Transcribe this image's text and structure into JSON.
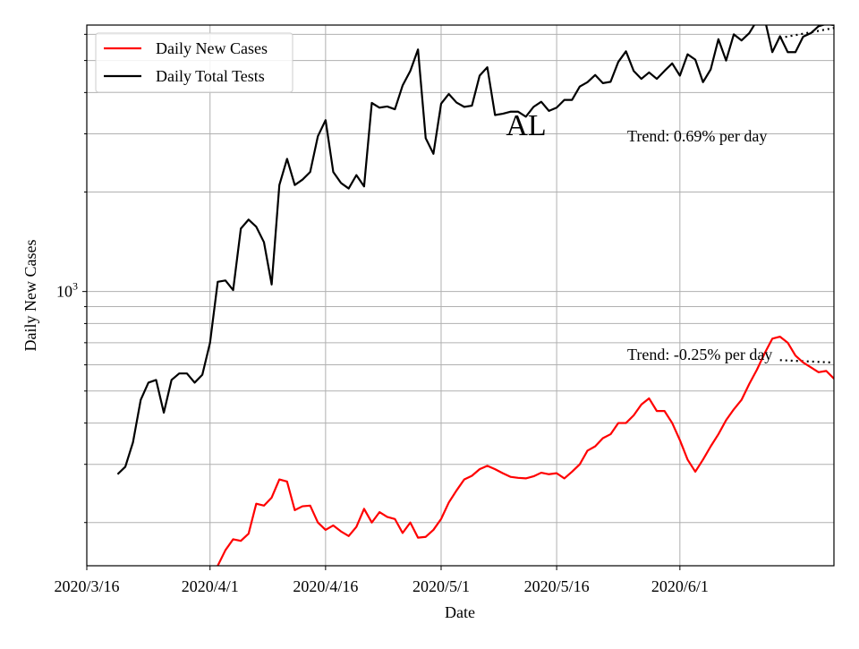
{
  "chart_data": {
    "type": "line",
    "title": "AL",
    "xlabel": "Date",
    "ylabel": "Daily New Cases",
    "yscale": "log",
    "ylim": [
      148,
      6400
    ],
    "xlim": [
      "2020-03-16",
      "2020-06-21"
    ],
    "grid": true,
    "legend_position": "top-left",
    "x_ticks": [
      {
        "date": "2020-03-16",
        "label": "2020/3/16"
      },
      {
        "date": "2020-04-01",
        "label": "2020/4/1"
      },
      {
        "date": "2020-04-16",
        "label": "2020/4/16"
      },
      {
        "date": "2020-05-01",
        "label": "2020/5/1"
      },
      {
        "date": "2020-05-16",
        "label": "2020/5/16"
      },
      {
        "date": "2020-06-01",
        "label": "2020/6/1"
      }
    ],
    "y_major_ticks": [
      {
        "value": 1000,
        "base": "10",
        "exponent": "3"
      }
    ],
    "y_minor_ticks": [
      200,
      300,
      400,
      500,
      600,
      700,
      800,
      900,
      2000,
      3000,
      4000,
      5000,
      6000
    ],
    "series": [
      {
        "name": "Daily New Cases",
        "color": "#ff0000",
        "x": [
          "2020-04-02",
          "2020-04-03",
          "2020-04-04",
          "2020-04-05",
          "2020-04-06",
          "2020-04-07",
          "2020-04-08",
          "2020-04-09",
          "2020-04-10",
          "2020-04-11",
          "2020-04-12",
          "2020-04-13",
          "2020-04-14",
          "2020-04-15",
          "2020-04-16",
          "2020-04-17",
          "2020-04-18",
          "2020-04-19",
          "2020-04-20",
          "2020-04-21",
          "2020-04-22",
          "2020-04-23",
          "2020-04-24",
          "2020-04-25",
          "2020-04-26",
          "2020-04-27",
          "2020-04-28",
          "2020-04-29",
          "2020-04-30",
          "2020-05-01",
          "2020-05-02",
          "2020-05-03",
          "2020-05-04",
          "2020-05-05",
          "2020-05-06",
          "2020-05-07",
          "2020-05-08",
          "2020-05-09",
          "2020-05-10",
          "2020-05-11",
          "2020-05-12",
          "2020-05-13",
          "2020-05-14",
          "2020-05-15",
          "2020-05-16",
          "2020-05-17",
          "2020-05-18",
          "2020-05-19",
          "2020-05-20",
          "2020-05-21",
          "2020-05-22",
          "2020-05-23",
          "2020-05-24",
          "2020-05-25",
          "2020-05-26",
          "2020-05-27",
          "2020-05-28",
          "2020-05-29",
          "2020-05-30",
          "2020-05-31",
          "2020-06-01",
          "2020-06-02",
          "2020-06-03",
          "2020-06-04",
          "2020-06-05",
          "2020-06-06",
          "2020-06-07",
          "2020-06-08",
          "2020-06-09",
          "2020-06-10",
          "2020-06-11",
          "2020-06-12",
          "2020-06-13",
          "2020-06-14",
          "2020-06-15",
          "2020-06-16",
          "2020-06-17",
          "2020-06-18",
          "2020-06-19",
          "2020-06-20",
          "2020-06-21",
          "2020-06-22",
          "2020-06-23",
          "2020-06-24"
        ],
        "values": [
          148,
          165,
          178,
          176,
          185,
          228,
          225,
          238,
          270,
          266,
          218,
          224,
          225,
          200,
          190,
          196,
          188,
          182,
          194,
          220,
          200,
          215,
          208,
          205,
          186,
          200,
          180,
          181,
          190,
          205,
          230,
          250,
          270,
          277,
          290,
          297,
          290,
          282,
          275,
          273,
          272,
          276,
          283,
          280,
          282,
          272,
          285,
          300,
          330,
          340,
          360,
          370,
          400,
          400,
          422,
          455,
          475,
          435,
          435,
          400,
          355,
          310,
          285,
          310,
          340,
          370,
          408,
          440,
          470,
          525,
          580,
          650,
          720,
          730,
          700,
          640,
          610,
          590,
          570,
          575,
          545,
          560,
          620,
          700
        ]
      },
      {
        "name": "Daily Total Tests",
        "color": "#000000",
        "x": [
          "2020-03-20",
          "2020-03-21",
          "2020-03-22",
          "2020-03-23",
          "2020-03-24",
          "2020-03-25",
          "2020-03-26",
          "2020-03-27",
          "2020-03-28",
          "2020-03-29",
          "2020-03-30",
          "2020-03-31",
          "2020-04-01",
          "2020-04-02",
          "2020-04-03",
          "2020-04-04",
          "2020-04-05",
          "2020-04-06",
          "2020-04-07",
          "2020-04-08",
          "2020-04-09",
          "2020-04-10",
          "2020-04-11",
          "2020-04-12",
          "2020-04-13",
          "2020-04-14",
          "2020-04-15",
          "2020-04-16",
          "2020-04-17",
          "2020-04-18",
          "2020-04-19",
          "2020-04-20",
          "2020-04-21",
          "2020-04-22",
          "2020-04-23",
          "2020-04-24",
          "2020-04-25",
          "2020-04-26",
          "2020-04-27",
          "2020-04-28",
          "2020-04-29",
          "2020-04-30",
          "2020-05-01",
          "2020-05-02",
          "2020-05-03",
          "2020-05-04",
          "2020-05-05",
          "2020-05-06",
          "2020-05-07",
          "2020-05-08",
          "2020-05-09",
          "2020-05-10",
          "2020-05-11",
          "2020-05-12",
          "2020-05-13",
          "2020-05-14",
          "2020-05-15",
          "2020-05-16",
          "2020-05-17",
          "2020-05-18",
          "2020-05-19",
          "2020-05-20",
          "2020-05-21",
          "2020-05-22",
          "2020-05-23",
          "2020-05-24",
          "2020-05-25",
          "2020-05-26",
          "2020-05-27",
          "2020-05-28",
          "2020-05-29",
          "2020-05-30",
          "2020-05-31",
          "2020-06-01",
          "2020-06-02",
          "2020-06-03",
          "2020-06-04",
          "2020-06-05",
          "2020-06-06",
          "2020-06-07",
          "2020-06-08",
          "2020-06-09",
          "2020-06-10",
          "2020-06-11",
          "2020-06-12",
          "2020-06-13",
          "2020-06-14",
          "2020-06-15",
          "2020-06-16",
          "2020-06-17",
          "2020-06-18",
          "2020-06-19",
          "2020-06-20",
          "2020-06-21",
          "2020-06-22",
          "2020-06-23",
          "2020-06-24"
        ],
        "values": [
          280,
          295,
          350,
          470,
          530,
          540,
          430,
          540,
          565,
          565,
          530,
          560,
          700,
          1070,
          1080,
          1010,
          1550,
          1650,
          1570,
          1410,
          1050,
          2100,
          2520,
          2100,
          2180,
          2300,
          2950,
          3300,
          2300,
          2130,
          2050,
          2250,
          2080,
          3720,
          3600,
          3630,
          3560,
          4200,
          4650,
          5400,
          2910,
          2610,
          3700,
          3960,
          3730,
          3620,
          3650,
          4500,
          4770,
          3420,
          3450,
          3500,
          3500,
          3380,
          3620,
          3750,
          3520,
          3600,
          3800,
          3800,
          4170,
          4300,
          4520,
          4270,
          4310,
          4950,
          5330,
          4650,
          4400,
          4600,
          4400,
          4650,
          4900,
          4500,
          5220,
          5030,
          4300,
          4700,
          5800,
          5000,
          6000,
          5750,
          6050,
          6600,
          6700,
          5300,
          5920,
          5300,
          5300,
          5900,
          6050,
          6350,
          6450,
          6400,
          6650,
          6550,
          6400
        ]
      }
    ],
    "annotations": [
      {
        "text": "Trend: 0.69% per day",
        "series": "Daily Total Tests",
        "trend_start": "2020-06-14",
        "trend_values": [
          5850,
          6460
        ]
      },
      {
        "text": "Trend: -0.25% per day",
        "series": "Daily New Cases",
        "trend_start": "2020-06-14",
        "trend_values": [
          620,
          605
        ]
      }
    ]
  }
}
